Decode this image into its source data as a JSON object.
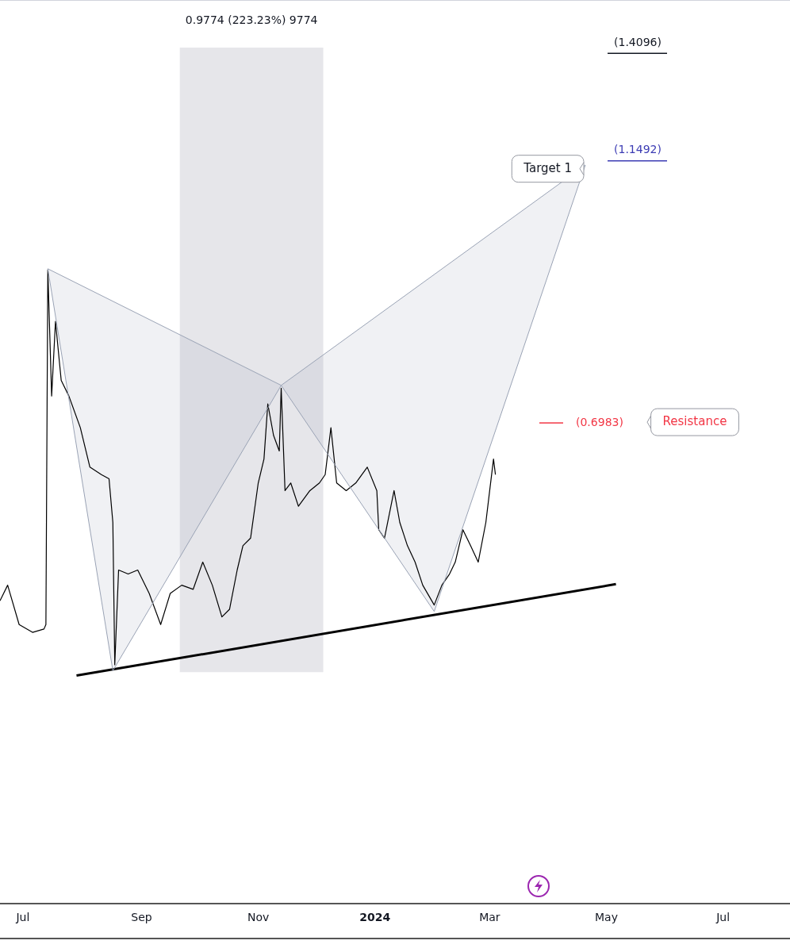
{
  "chart_data": {
    "type": "line",
    "log": "y",
    "xlim": [
      "2023-06-19",
      "2024-08-05"
    ],
    "xticks": [
      {
        "value": "2023-07",
        "label": "Jul"
      },
      {
        "value": "2023-09",
        "label": "Sep"
      },
      {
        "value": "2023-11",
        "label": "Nov"
      },
      {
        "value": "2024-01",
        "label": "2024"
      },
      {
        "value": "2024-03",
        "label": "Mar"
      },
      {
        "value": "2024-05",
        "label": "May"
      },
      {
        "value": "2024-07",
        "label": "Jul"
      }
    ],
    "ylim": [
      0.28,
      1.56
    ],
    "tick_labels": "x",
    "grid": false,
    "legend": false,
    "series": [
      {
        "type": "area",
        "color": "#9aa3b5",
        "x": [
          "2023-07-14",
          "2023-08-17",
          "2023-11-13",
          "2023-07-14"
        ],
        "values": [
          0.936,
          0.436,
          0.75,
          0.936
        ]
      },
      {
        "type": "area",
        "color": "#9aa3b5",
        "x": [
          "2023-11-13",
          "2024-02-01",
          "2024-04-20",
          "2023-11-13"
        ],
        "values": [
          0.75,
          0.488,
          1.14,
          0.75
        ]
      },
      {
        "type": "line",
        "color": "#000000",
        "x": [
          "2023-06-19",
          "2023-06-23",
          "2023-06-29",
          "2023-07-06",
          "2023-07-12",
          "2023-07-13",
          "2023-07-14",
          "2023-07-16",
          "2023-07-18",
          "2023-07-21",
          "2023-07-25",
          "2023-07-31",
          "2023-08-05",
          "2023-08-11",
          "2023-08-15",
          "2023-08-17",
          "2023-08-18",
          "2023-08-20",
          "2023-08-25",
          "2023-08-30",
          "2023-09-05",
          "2023-09-11",
          "2023-09-16",
          "2023-09-22",
          "2023-09-28",
          "2023-10-03",
          "2023-10-08",
          "2023-10-13",
          "2023-10-17",
          "2023-10-21",
          "2023-10-24",
          "2023-10-28",
          "2023-11-01",
          "2023-11-04",
          "2023-11-06",
          "2023-11-09",
          "2023-11-12",
          "2023-11-13",
          "2023-11-15",
          "2023-11-18",
          "2023-11-22",
          "2023-11-28",
          "2023-12-03",
          "2023-12-06",
          "2023-12-09",
          "2023-12-12",
          "2023-12-17",
          "2023-12-22",
          "2023-12-28",
          "2024-01-02",
          "2024-01-03",
          "2024-01-06",
          "2024-01-11",
          "2024-01-14",
          "2024-01-18",
          "2024-01-22",
          "2024-01-26",
          "2024-02-01",
          "2024-02-05",
          "2024-02-09",
          "2024-02-12",
          "2024-02-16",
          "2024-02-20",
          "2024-02-24",
          "2024-02-28",
          "2024-03-01",
          "2024-03-03",
          "2024-03-04"
        ],
        "values": [
          0.498,
          0.513,
          0.476,
          0.469,
          0.472,
          0.476,
          0.934,
          0.735,
          0.847,
          0.757,
          0.735,
          0.692,
          0.642,
          0.633,
          0.628,
          0.578,
          0.441,
          0.528,
          0.524,
          0.528,
          0.505,
          0.476,
          0.505,
          0.513,
          0.509,
          0.536,
          0.513,
          0.483,
          0.49,
          0.528,
          0.553,
          0.561,
          0.623,
          0.652,
          0.724,
          0.682,
          0.662,
          0.746,
          0.614,
          0.623,
          0.596,
          0.614,
          0.623,
          0.633,
          0.692,
          0.623,
          0.614,
          0.623,
          0.642,
          0.614,
          0.57,
          0.561,
          0.614,
          0.578,
          0.553,
          0.536,
          0.513,
          0.494,
          0.513,
          0.524,
          0.536,
          0.57,
          0.553,
          0.536,
          0.578,
          0.614,
          0.652,
          0.633
        ]
      },
      {
        "type": "line",
        "color": "#000000",
        "x": [
          "2023-07-29",
          "2024-05-06"
        ],
        "values": [
          0.432,
          0.514
        ]
      }
    ],
    "bands": [
      {
        "axis": "x",
        "from": "2023-09-21",
        "to": "2023-12-05",
        "label": "0.9774 (223.23%) 9774",
        "color": "#e6e6ea"
      }
    ],
    "ref_lines": [
      {
        "axis": "y",
        "value": 1.4096,
        "label": "(1.4096)",
        "color": "#131722"
      },
      {
        "axis": "y",
        "value": 1.1492,
        "label": "(1.1492)",
        "color": "#3c3cb4"
      },
      {
        "axis": "y",
        "value": 0.6983,
        "label": "(0.6983)",
        "color": "#f23645"
      }
    ],
    "annotations": [
      "Target 1",
      "Resistance"
    ]
  }
}
